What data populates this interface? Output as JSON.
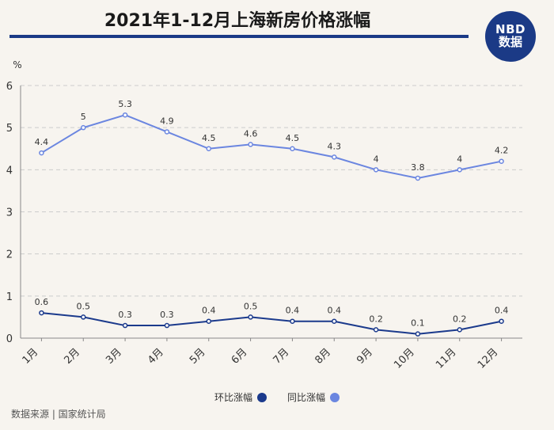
{
  "header": {
    "title": "2021年1-12月上海新房价格涨幅",
    "logo_line1": "NBD",
    "logo_line2": "数据"
  },
  "source": "数据来源 | 国家统计局",
  "colors": {
    "huanbi": "#1b3a8c",
    "tongbi": "#6b86e0",
    "grid": "#cccccc",
    "title_rule": "#1b3a86"
  },
  "chart_data": {
    "type": "line",
    "unit_label": "%",
    "categories": [
      "1月",
      "2月",
      "3月",
      "4月",
      "5月",
      "6月",
      "7月",
      "8月",
      "9月",
      "10月",
      "11月",
      "12月"
    ],
    "ylim": [
      0,
      6
    ],
    "yticks": [
      0,
      1,
      2,
      3,
      4,
      5,
      6
    ],
    "grid": true,
    "legend_position": "bottom-center",
    "series": [
      {
        "name": "环比涨幅",
        "values": [
          0.6,
          0.5,
          0.3,
          0.3,
          0.4,
          0.5,
          0.4,
          0.4,
          0.2,
          0.1,
          0.2,
          0.4
        ]
      },
      {
        "name": "同比涨幅",
        "values": [
          4.4,
          5,
          5.3,
          4.9,
          4.5,
          4.6,
          4.5,
          4.3,
          4,
          3.8,
          4,
          4.2
        ]
      }
    ]
  }
}
